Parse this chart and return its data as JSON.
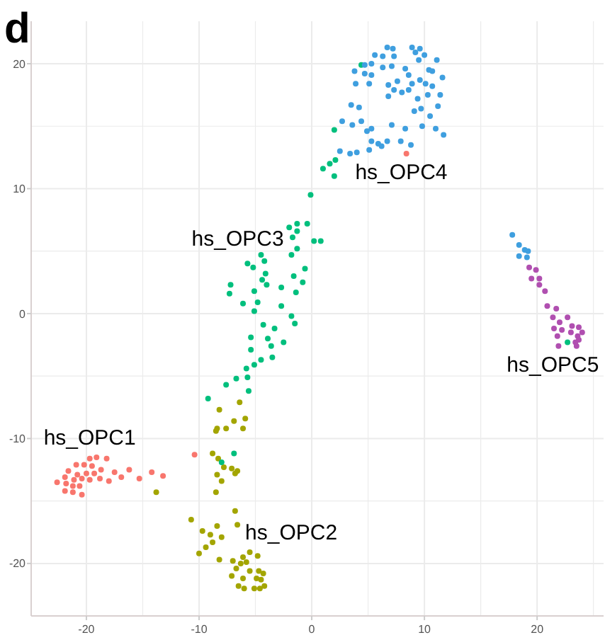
{
  "chart_data": {
    "type": "scatter",
    "title": "d",
    "xlim": [
      -24.9,
      25.9
    ],
    "ylim": [
      -24.2,
      23.4
    ],
    "xticks": [
      -20,
      {
        "value": -15,
        "label": null
      },
      -10,
      {
        "value": -5,
        "label": null
      },
      0,
      {
        "value": 5,
        "label": null
      },
      10,
      {
        "value": 15,
        "label": null
      },
      20,
      {
        "value": 25,
        "label": null
      }
    ],
    "yticks": [
      -20,
      {
        "value": -15,
        "label": null
      },
      -10,
      {
        "value": -5,
        "label": null
      },
      0,
      {
        "value": 5,
        "label": null
      },
      10,
      {
        "value": 15,
        "label": null
      },
      20
    ],
    "grid": true,
    "marker": "circle",
    "series": [
      {
        "name": "hs_OPC1",
        "color": "#f8766d",
        "x": [
          8.4,
          -10.4,
          -19.7,
          -19.1,
          -18.2,
          -20.9,
          -20.2,
          -19.5,
          -18.7,
          -21.6,
          -20.8,
          -20.0,
          -19.3,
          -17.5,
          -16.2,
          -21.9,
          -21.1,
          -20.4,
          -19.7,
          -18.8,
          -14.2,
          -13.2,
          -15.3,
          -22.6,
          -21.8,
          -21.2,
          -20.6,
          -18.0,
          -21.9,
          -21.2,
          -20.4,
          -16.9
        ],
        "values": [
          12.8,
          -11.3,
          -11.6,
          -11.5,
          -11.6,
          -12.1,
          -12.1,
          -12.2,
          -12.5,
          -12.6,
          -12.9,
          -12.8,
          -12.8,
          -12.7,
          -12.5,
          -13.1,
          -13.3,
          -13.2,
          -13.3,
          -13.2,
          -12.7,
          -13.0,
          -13.2,
          -13.5,
          -13.6,
          -13.8,
          -13.8,
          -13.4,
          -14.2,
          -14.3,
          -14.5,
          -13.1
        ]
      },
      {
        "name": "hs_OPC2",
        "color": "#a3a500",
        "x": [
          -6.4,
          -8.2,
          -5.9,
          -6.9,
          -8.4,
          -7.6,
          -6.1,
          -8.5,
          -8.8,
          -8.3,
          -7.8,
          -7.1,
          -6.6,
          -8.4,
          -6.8,
          -8.0,
          -8.5,
          -13.8,
          -6.8,
          -6.6,
          -10.7,
          -9.7,
          -8.4,
          -9.0,
          -8.0,
          -8.8,
          -8.2,
          -9.4,
          -10.0,
          -6.1,
          -5.5,
          -4.8,
          -4.7,
          -6.7,
          -5.5,
          -7.1,
          -6.1,
          -6.5,
          -4.9,
          -4.3,
          -4.5,
          -5.1,
          -6.0,
          -4.6,
          -4.2,
          -6.3,
          -7.0,
          -5.8
        ],
        "values": [
          -7.1,
          -7.7,
          -8.4,
          -8.6,
          -9.2,
          -9.2,
          -9.2,
          -9.4,
          -11.2,
          -11.6,
          -12.3,
          -12.4,
          -12.6,
          -12.9,
          -12.8,
          -13.4,
          -14.3,
          -14.3,
          -15.8,
          -16.9,
          -16.5,
          -17.4,
          -17.0,
          -17.7,
          -17.9,
          -18.3,
          -19.7,
          -18.7,
          -19.2,
          -19.5,
          -19.1,
          -19.4,
          -20.6,
          -20.4,
          -20.6,
          -21.0,
          -21.2,
          -21.8,
          -21.2,
          -20.8,
          -21.3,
          -22.0,
          -22.0,
          -22.0,
          -21.8,
          -20.0,
          -19.8,
          -19.9
        ]
      },
      {
        "name": "hs_OPC3",
        "color": "#00bf7d",
        "x": [
          4.4,
          2.0,
          2.1,
          1.6,
          1.0,
          2.0,
          -0.1,
          -2.0,
          -1.3,
          -0.4,
          -1.3,
          -1.7,
          0.2,
          0.8,
          -1.3,
          -1.8,
          -0.6,
          -5.7,
          -4.5,
          -4.2,
          -5.2,
          -4.1,
          -4.4,
          -2.7,
          -1.6,
          -0.8,
          -7.2,
          -4.0,
          -5.1,
          -7.3,
          -1.4,
          -4.8,
          -6.1,
          -5.1,
          -2.7,
          -1.8,
          -4.3,
          -3.3,
          -1.5,
          -5.4,
          -3.9,
          -2.5,
          -3.6,
          -5.4,
          -4.5,
          -3.5,
          -5.1,
          -5.8,
          -6.7,
          -5.7,
          -7.6,
          -5.6,
          -9.2,
          -8.0,
          -6.9,
          22.7
        ],
        "values": [
          19.9,
          14.7,
          12.3,
          12.0,
          11.6,
          11.0,
          9.5,
          6.9,
          7.2,
          7.2,
          6.6,
          6.1,
          5.8,
          5.8,
          5.2,
          4.7,
          3.6,
          4.0,
          4.7,
          4.2,
          3.7,
          3.2,
          2.7,
          2.1,
          3.0,
          2.5,
          2.3,
          2.3,
          1.8,
          1.6,
          1.7,
          0.9,
          0.8,
          0.2,
          0.6,
          -0.2,
          -0.9,
          -1.2,
          -0.8,
          -1.9,
          -2.0,
          -2.3,
          -2.6,
          -2.9,
          -3.7,
          -3.5,
          -4.1,
          -4.4,
          -5.2,
          -5.1,
          -5.7,
          -6.2,
          -6.8,
          -11.9,
          -11.2,
          -2.3
        ]
      },
      {
        "name": "hs_OPC4",
        "color": "#3f9fdf",
        "x": [
          6.7,
          7.2,
          8.9,
          9.6,
          5.6,
          6.3,
          7.3,
          9.2,
          10.0,
          11.1,
          5.3,
          4.7,
          6.3,
          7.1,
          8.3,
          9.5,
          10.4,
          10.7,
          3.8,
          4.7,
          5.3,
          8.6,
          9.6,
          10.1,
          3.9,
          5.1,
          7.6,
          8.9,
          10.7,
          11.6,
          11.4,
          6.8,
          8.6,
          9.4,
          10.3,
          11.2,
          9.7,
          9.1,
          3.5,
          4.2,
          10.5,
          2.7,
          3.6,
          4.4,
          5.3,
          4.9,
          7.1,
          8.3,
          9.8,
          11.0,
          11.7,
          5.9,
          5.3,
          6.7,
          7.9,
          8.8,
          5.1,
          6.2,
          2.5,
          3.4,
          4.0,
          7.3,
          8.0,
          6.8,
          17.8,
          18.4,
          18.9,
          19.2,
          18.4,
          19.1
        ],
        "values": [
          21.3,
          21.2,
          21.3,
          21.2,
          20.7,
          20.6,
          20.6,
          20.9,
          20.7,
          20.3,
          20.0,
          19.9,
          19.7,
          19.8,
          19.6,
          20.3,
          19.5,
          19.4,
          19.4,
          19.2,
          19.1,
          19.1,
          18.7,
          18.4,
          18.4,
          18.4,
          18.6,
          18.4,
          18.2,
          18.9,
          17.5,
          17.4,
          17.9,
          17.2,
          17.5,
          16.6,
          16.4,
          16.2,
          16.7,
          16.5,
          15.8,
          15.4,
          15.1,
          15.4,
          14.8,
          14.6,
          15.1,
          14.8,
          15.0,
          14.8,
          14.3,
          13.6,
          13.8,
          13.8,
          13.8,
          13.5,
          13.1,
          13.4,
          13.0,
          12.8,
          12.9,
          17.9,
          17.7,
          18.3,
          6.3,
          5.5,
          5.1,
          5.0,
          4.6,
          4.5
        ]
      },
      {
        "name": "hs_OPC5",
        "color": "#b04fb0",
        "x": [
          19.3,
          19.9,
          19.5,
          20.2,
          20.2,
          20.7,
          20.9,
          21.7,
          21.4,
          22.7,
          22.0,
          23.1,
          23.7,
          21.5,
          22.2,
          23.0,
          24.0,
          23.6,
          21.8,
          23.7,
          23.4,
          21.9,
          23.5
        ],
        "values": [
          3.7,
          3.5,
          2.8,
          2.8,
          2.3,
          1.8,
          0.6,
          0.4,
          -0.3,
          -0.3,
          -0.7,
          -1.0,
          -1.1,
          -1.2,
          -1.3,
          -1.5,
          -1.5,
          -1.8,
          -1.8,
          -2.1,
          -2.3,
          -2.6,
          -2.6
        ]
      }
    ]
  }
}
